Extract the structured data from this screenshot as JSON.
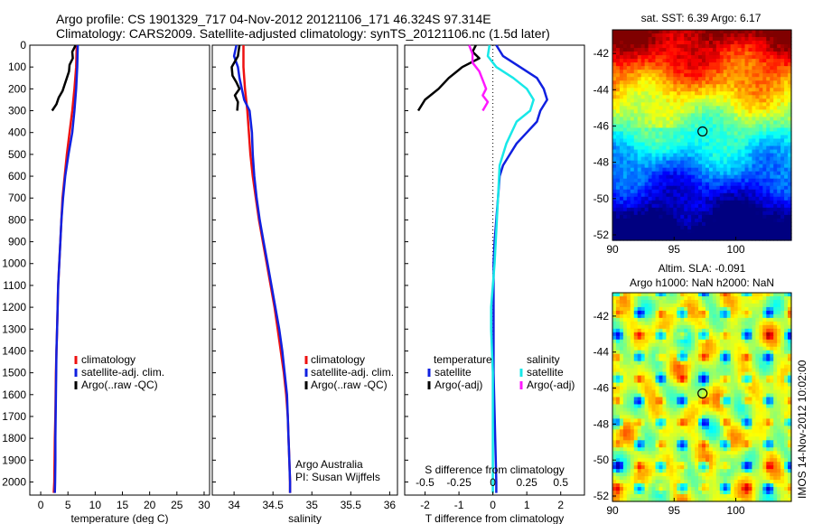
{
  "header": {
    "line1": "Argo profile: CS 1901329_717 04-Nov-2012 20121106_171 46.324S 97.314E",
    "line2": "Climatology: CARS2009. Satellite-adjusted climatology: synTS_20121106.nc (1.5d later)"
  },
  "colors": {
    "climatology": "#ee1111",
    "satellite": "#1020e0",
    "argo": "#000000",
    "satellite_sal": "#18e8e8",
    "argo_sal": "#ff18ff"
  },
  "chart_data": [
    {
      "type": "line",
      "id": "temperature",
      "xlabel": "temperature (deg C)",
      "ylabel": "",
      "xlim": [
        -2,
        31
      ],
      "ylim": [
        2060,
        0
      ],
      "xticks": [
        0,
        5,
        10,
        15,
        20,
        25,
        30
      ],
      "yticks": [
        0,
        100,
        200,
        300,
        400,
        500,
        600,
        700,
        800,
        900,
        1000,
        1100,
        1200,
        1300,
        1400,
        1500,
        1600,
        1700,
        1800,
        1900,
        2000
      ],
      "legend": {
        "position": "center",
        "entries": [
          "climatology",
          "satellite-adj. clim.",
          "Argo(..raw -QC)"
        ]
      },
      "series": [
        {
          "name": "climatology",
          "color": "#ee1111",
          "points": [
            [
              6.6,
              0
            ],
            [
              6.5,
              100
            ],
            [
              6.2,
              200
            ],
            [
              5.8,
              300
            ],
            [
              5.3,
              400
            ],
            [
              4.8,
              500
            ],
            [
              4.4,
              600
            ],
            [
              4.0,
              700
            ],
            [
              3.8,
              800
            ],
            [
              3.6,
              900
            ],
            [
              3.4,
              1000
            ],
            [
              3.2,
              1100
            ],
            [
              3.1,
              1200
            ],
            [
              3.0,
              1300
            ],
            [
              2.9,
              1400
            ],
            [
              2.8,
              1500
            ],
            [
              2.75,
              1600
            ],
            [
              2.7,
              1700
            ],
            [
              2.6,
              1800
            ],
            [
              2.55,
              1900
            ],
            [
              2.5,
              2000
            ],
            [
              2.4,
              2050
            ]
          ]
        },
        {
          "name": "satellite-adj. clim.",
          "color": "#1020e0",
          "points": [
            [
              6.8,
              0
            ],
            [
              6.7,
              100
            ],
            [
              6.5,
              200
            ],
            [
              6.2,
              300
            ],
            [
              5.8,
              400
            ],
            [
              5.1,
              500
            ],
            [
              4.5,
              600
            ],
            [
              4.1,
              700
            ],
            [
              3.8,
              800
            ],
            [
              3.6,
              900
            ],
            [
              3.4,
              1000
            ],
            [
              3.2,
              1100
            ],
            [
              3.1,
              1200
            ],
            [
              3.0,
              1300
            ],
            [
              2.9,
              1400
            ],
            [
              2.85,
              1500
            ],
            [
              2.8,
              1600
            ],
            [
              2.75,
              1700
            ],
            [
              2.7,
              1800
            ],
            [
              2.7,
              1900
            ],
            [
              2.65,
              2000
            ],
            [
              2.6,
              2050
            ]
          ]
        },
        {
          "name": "Argo(..raw -QC)",
          "color": "#000000",
          "points": [
            [
              6.4,
              0
            ],
            [
              5.8,
              30
            ],
            [
              5.9,
              60
            ],
            [
              5.3,
              90
            ],
            [
              5.2,
              120
            ],
            [
              4.8,
              150
            ],
            [
              4.4,
              180
            ],
            [
              4.0,
              210
            ],
            [
              3.3,
              240
            ],
            [
              2.9,
              270
            ],
            [
              2.1,
              300
            ]
          ]
        }
      ]
    },
    {
      "type": "line",
      "id": "salinity",
      "xlabel": "salinity",
      "ylabel": "",
      "xlim": [
        33.72,
        36.1
      ],
      "ylim": [
        2060,
        0
      ],
      "xticks": [
        34,
        34.5,
        35,
        35.5,
        36
      ],
      "legend": {
        "position": "center",
        "entries": [
          "climatology",
          "satellite-adj. clim.",
          "Argo(..raw -QC)"
        ]
      },
      "annotation": [
        "Argo Australia",
        "PI: Susan Wijffels"
      ],
      "series": [
        {
          "name": "climatology",
          "color": "#ee1111",
          "points": [
            [
              34.12,
              0
            ],
            [
              34.12,
              100
            ],
            [
              34.14,
              200
            ],
            [
              34.17,
              300
            ],
            [
              34.19,
              400
            ],
            [
              34.21,
              500
            ],
            [
              34.24,
              600
            ],
            [
              34.28,
              700
            ],
            [
              34.32,
              800
            ],
            [
              34.37,
              900
            ],
            [
              34.42,
              1000
            ],
            [
              34.47,
              1100
            ],
            [
              34.52,
              1200
            ],
            [
              34.56,
              1300
            ],
            [
              34.6,
              1400
            ],
            [
              34.64,
              1500
            ],
            [
              34.67,
              1600
            ],
            [
              34.69,
              1700
            ],
            [
              34.7,
              1800
            ],
            [
              34.71,
              1900
            ],
            [
              34.72,
              2000
            ],
            [
              34.72,
              2050
            ]
          ]
        },
        {
          "name": "satellite-adj. clim.",
          "color": "#1020e0",
          "points": [
            [
              34.03,
              0
            ],
            [
              34.0,
              50
            ],
            [
              34.05,
              100
            ],
            [
              34.07,
              150
            ],
            [
              34.1,
              200
            ],
            [
              34.13,
              250
            ],
            [
              34.2,
              300
            ],
            [
              34.23,
              400
            ],
            [
              34.24,
              500
            ],
            [
              34.26,
              600
            ],
            [
              34.29,
              700
            ],
            [
              34.33,
              800
            ],
            [
              34.38,
              900
            ],
            [
              34.43,
              1000
            ],
            [
              34.48,
              1100
            ],
            [
              34.53,
              1200
            ],
            [
              34.58,
              1300
            ],
            [
              34.62,
              1400
            ],
            [
              34.65,
              1500
            ],
            [
              34.68,
              1600
            ],
            [
              34.69,
              1700
            ],
            [
              34.7,
              1800
            ],
            [
              34.71,
              1900
            ],
            [
              34.72,
              2000
            ],
            [
              34.72,
              2050
            ]
          ]
        },
        {
          "name": "Argo(..raw -QC)",
          "color": "#000000",
          "points": [
            [
              34.07,
              0
            ],
            [
              34.05,
              50
            ],
            [
              33.97,
              100
            ],
            [
              33.98,
              140
            ],
            [
              34.03,
              170
            ],
            [
              34.07,
              200
            ],
            [
              34.01,
              230
            ],
            [
              34.05,
              260
            ],
            [
              34.04,
              300
            ]
          ]
        }
      ]
    },
    {
      "type": "line",
      "id": "difference",
      "xlabel": "T difference from climatology",
      "xlabel_top": "S difference from climatology",
      "xlim": [
        -2.6,
        2.7
      ],
      "ylim": [
        2060,
        0
      ],
      "xticks_bottom": [
        -2,
        -1,
        0,
        1,
        2
      ],
      "xticks_top": [
        "-0.5",
        "-0.25",
        "0",
        "0.25",
        "0.5"
      ],
      "legend": {
        "position": "center",
        "groups": [
          {
            "title": "temperature",
            "entries": [
              "satellite",
              "Argo(-adj)"
            ]
          },
          {
            "title": "salinity",
            "entries": [
              "satellite",
              "Argo(-adj)"
            ]
          }
        ]
      },
      "series": [
        {
          "name": "temperature satellite",
          "color": "#1020e0",
          "points": [
            [
              0.1,
              0
            ],
            [
              0.3,
              50
            ],
            [
              0.8,
              100
            ],
            [
              1.3,
              150
            ],
            [
              1.5,
              200
            ],
            [
              1.6,
              250
            ],
            [
              1.4,
              300
            ],
            [
              1.3,
              350
            ],
            [
              1.0,
              400
            ],
            [
              0.7,
              450
            ],
            [
              0.5,
              500
            ],
            [
              0.3,
              550
            ],
            [
              0.2,
              600
            ],
            [
              0.15,
              700
            ],
            [
              0.1,
              800
            ],
            [
              0.05,
              900
            ],
            [
              0.02,
              1000
            ],
            [
              0.02,
              1500
            ],
            [
              0.1,
              2000
            ],
            [
              0.1,
              2050
            ]
          ]
        },
        {
          "name": "temperature Argo(-adj)",
          "color": "#000000",
          "points": [
            [
              -0.5,
              0
            ],
            [
              -0.6,
              30
            ],
            [
              -0.4,
              60
            ],
            [
              -0.9,
              100
            ],
            [
              -1.3,
              150
            ],
            [
              -1.6,
              200
            ],
            [
              -2.0,
              250
            ],
            [
              -2.2,
              300
            ]
          ]
        },
        {
          "name": "salinity satellite",
          "color": "#18e8e8",
          "points": [
            [
              -0.1,
              0
            ],
            [
              -0.15,
              50
            ],
            [
              0.1,
              100
            ],
            [
              0.6,
              150
            ],
            [
              1.0,
              200
            ],
            [
              1.2,
              250
            ],
            [
              1.1,
              300
            ],
            [
              0.7,
              350
            ],
            [
              0.4,
              450
            ],
            [
              0.2,
              550
            ],
            [
              0.15,
              700
            ],
            [
              0.1,
              850
            ],
            [
              0.05,
              1000
            ],
            [
              0,
              1100
            ],
            [
              -0.05,
              1200
            ],
            [
              -0.05,
              1300
            ],
            [
              0,
              1500
            ],
            [
              0,
              1700
            ],
            [
              0,
              2050
            ]
          ]
        },
        {
          "name": "salinity Argo(-adj)",
          "color": "#ff18ff",
          "points": [
            [
              -0.7,
              0
            ],
            [
              -0.6,
              40
            ],
            [
              -0.6,
              80
            ],
            [
              -0.4,
              120
            ],
            [
              -0.3,
              160
            ],
            [
              -0.2,
              200
            ],
            [
              -0.3,
              230
            ],
            [
              -0.15,
              260
            ],
            [
              -0.3,
              300
            ]
          ]
        }
      ]
    },
    {
      "type": "heatmap",
      "id": "sst_map",
      "title": "sat. SST: 6.39 Argo: 6.17",
      "xlim": [
        90,
        104.5
      ],
      "ylim": [
        -52.3,
        -40.7
      ],
      "xticks": [
        90,
        95,
        100
      ],
      "yticks": [
        -42,
        -44,
        -46,
        -48,
        -50,
        -52
      ],
      "marker": [
        97.3,
        -46.3
      ]
    },
    {
      "type": "heatmap",
      "id": "sla_map",
      "title_line1": "Altim. SLA: -0.091",
      "title_line2": "Argo h1000: NaN h2000: NaN",
      "xlim": [
        90,
        104.5
      ],
      "ylim": [
        -52.3,
        -40.7
      ],
      "xticks": [
        90,
        95,
        100
      ],
      "yticks": [
        -42,
        -44,
        -46,
        -48,
        -50,
        -52
      ],
      "marker": [
        97.3,
        -46.3
      ]
    }
  ],
  "stamp": "IMOS 14-Nov-2012 10:02:00"
}
